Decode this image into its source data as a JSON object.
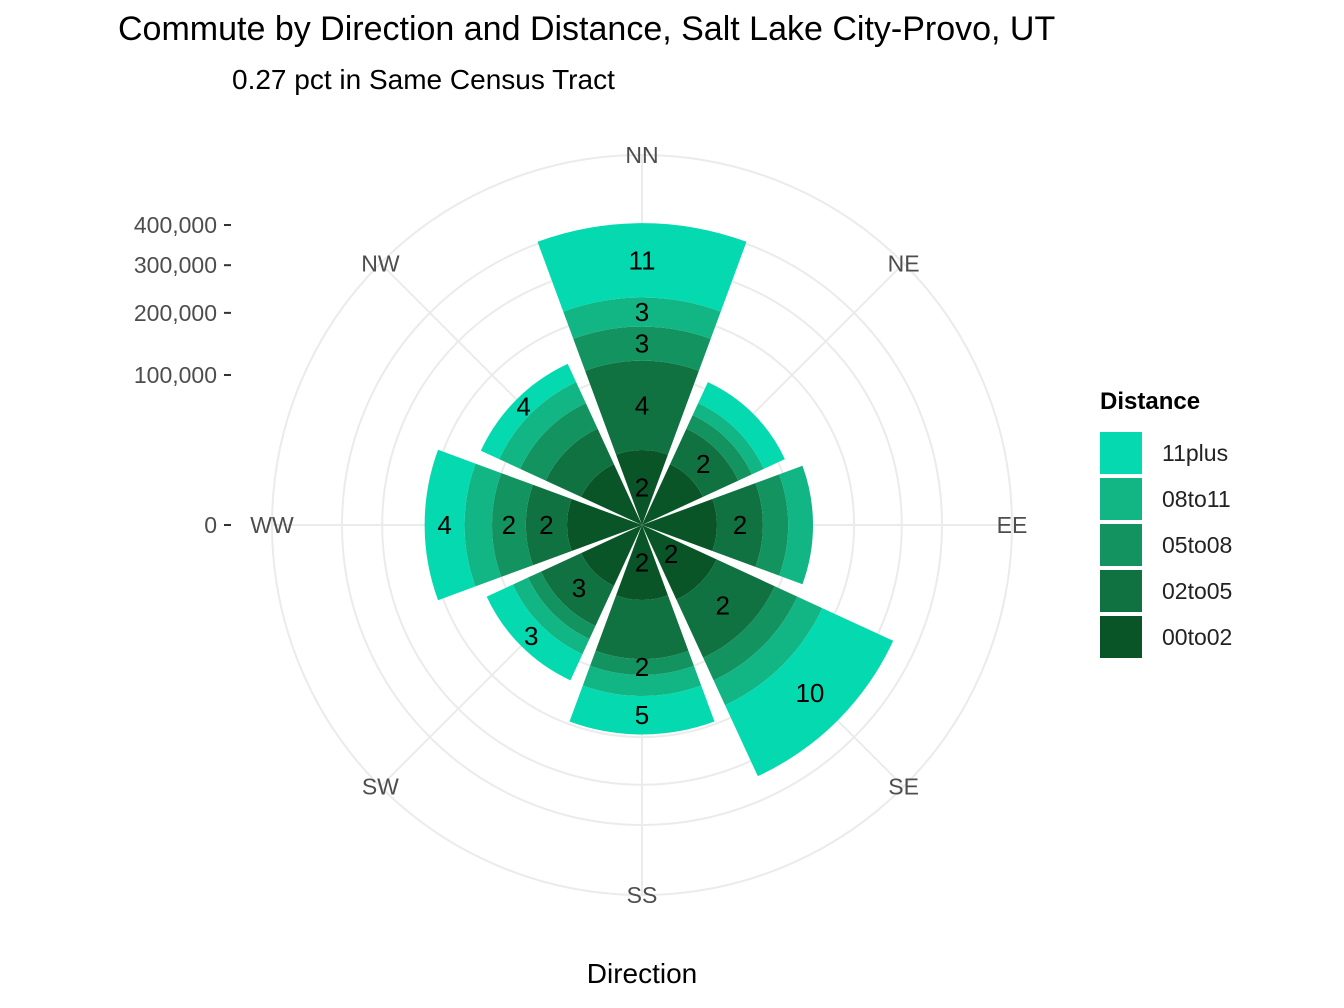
{
  "chart_data": {
    "type": "polar-stacked-bar",
    "title": "Commute by Direction and Distance, Salt Lake City-Provo, UT",
    "subtitle": "0.27 pct in Same Census Tract",
    "xlabel": "Direction",
    "ylabel": "",
    "ylim": [
      0,
      400000
    ],
    "y_ticks": [
      0,
      100000,
      200000,
      300000,
      400000
    ],
    "y_tick_labels": [
      "0",
      "100,000",
      "200,000",
      "300,000",
      "400,000"
    ],
    "categories": [
      "NN",
      "NE",
      "EE",
      "SE",
      "SS",
      "SW",
      "WW",
      "NW"
    ],
    "legend_title": "Distance",
    "legend_position": "right",
    "grid": true,
    "series": [
      {
        "name": "11plus",
        "color": "#05d9af",
        "values": [
          405000,
          110000,
          45000,
          340000,
          195000,
          130000,
          210000,
          140000
        ]
      },
      {
        "name": "08to11",
        "color": "#12b584",
        "values": [
          230000,
          80000,
          130000,
          175000,
          130000,
          90000,
          140000,
          110000
        ]
      },
      {
        "name": "05to08",
        "color": "#12935f",
        "values": [
          175000,
          65000,
          95000,
          130000,
          100000,
          70000,
          100000,
          80000
        ]
      },
      {
        "name": "02to05",
        "color": "#0f7240",
        "values": [
          120000,
          50000,
          65000,
          95000,
          80000,
          55000,
          60000,
          50000
        ]
      },
      {
        "name": "00to02",
        "color": "#0a5528",
        "values": [
          25000,
          20000,
          25000,
          30000,
          25000,
          20000,
          25000,
          20000
        ]
      }
    ],
    "data_labels": [
      {
        "category": "NN",
        "series": "11plus",
        "text": "11"
      },
      {
        "category": "NN",
        "series": "08to11",
        "text": "3"
      },
      {
        "category": "NN",
        "series": "05to08",
        "text": "3"
      },
      {
        "category": "NN",
        "series": "02to05",
        "text": "4"
      },
      {
        "category": "NN",
        "series": "00to02",
        "text": "2"
      },
      {
        "category": "NE",
        "series": "02to05",
        "text": "2"
      },
      {
        "category": "EE",
        "series": "02to05",
        "text": "2"
      },
      {
        "category": "SE",
        "series": "11plus",
        "text": "10"
      },
      {
        "category": "SE",
        "series": "02to05",
        "text": "2"
      },
      {
        "category": "SE",
        "series": "00to02",
        "text": "2"
      },
      {
        "category": "SS",
        "series": "11plus",
        "text": "5"
      },
      {
        "category": "SS",
        "series": "05to08",
        "text": "2"
      },
      {
        "category": "SS",
        "series": "00to02",
        "text": "2"
      },
      {
        "category": "SW",
        "series": "11plus",
        "text": "3"
      },
      {
        "category": "SW",
        "series": "02to05",
        "text": "3"
      },
      {
        "category": "WW",
        "series": "11plus",
        "text": "4"
      },
      {
        "category": "WW",
        "series": "05to08",
        "text": "2"
      },
      {
        "category": "WW",
        "series": "02to05",
        "text": "2"
      },
      {
        "category": "NW",
        "series": "11plus",
        "text": "4"
      }
    ]
  }
}
